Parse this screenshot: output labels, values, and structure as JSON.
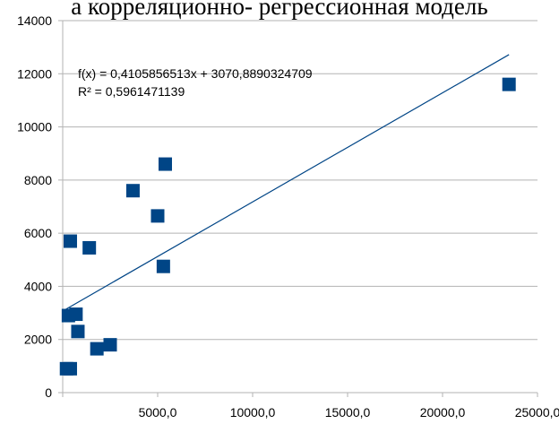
{
  "top_text": "а корреляционно- регрессионная модель",
  "chart_data": {
    "type": "scatter",
    "x": [
      200,
      400,
      300,
      700,
      400,
      800,
      1800,
      2500,
      1400,
      5300,
      5000,
      3700,
      5400,
      23500
    ],
    "y": [
      900,
      900,
      2900,
      2950,
      5700,
      2300,
      1650,
      1800,
      5450,
      4750,
      6650,
      7600,
      8600,
      11600
    ],
    "xlim": [
      0,
      25000
    ],
    "ylim": [
      0,
      14000
    ],
    "xticks": [
      5000,
      10000,
      15000,
      20000,
      25000
    ],
    "xtick_labels": [
      "5000,0",
      "10000,0",
      "15000,0",
      "20000,0",
      "25000,0"
    ],
    "yticks": [
      0,
      2000,
      4000,
      6000,
      8000,
      10000,
      12000,
      14000
    ],
    "ytick_labels": [
      "0",
      "2000",
      "4000",
      "6000",
      "8000",
      "10000",
      "12000",
      "14000"
    ],
    "trendline": {
      "slope": 0.4105856513,
      "intercept": 3070.8890324709,
      "x_range": [
        0,
        23500
      ],
      "equation_text": "f(x) = 0,4105856513x + 3070,8890324709",
      "r2_text": "R² = 0,5961471139"
    },
    "grid": "horizontal",
    "marker": "square",
    "marker_color": "#004586",
    "trend_color": "#004586",
    "grid_color": "#b3b3b3",
    "axis_color": "#b3b3b3"
  }
}
